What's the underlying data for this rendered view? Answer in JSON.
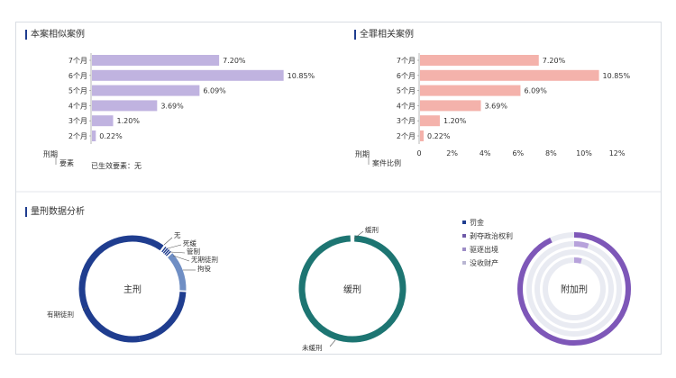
{
  "sections": {
    "similar_cases_title": "本案相似案例",
    "crime_cases_title": "全罪相关案例",
    "sentencing_title": "量刑数据分析"
  },
  "left_chart": {
    "axis_label_top": "刑期",
    "axis_label_bottom": "要素",
    "footer": "已生效要素：无"
  },
  "right_chart": {
    "axis_label_top": "刑期",
    "axis_label_bottom": "案件比例"
  },
  "colors": {
    "purple_bar": "#c0b3e0",
    "pink_bar": "#f4b2ab",
    "main_ring": "#1f3d8f",
    "main_ring_light": "#6f8ec4",
    "probation_ring": "#1d7572",
    "additional_ring": "#7e57b8",
    "ring_track": "#e9ebf2"
  },
  "chart_data": [
    {
      "type": "bar",
      "orientation": "horizontal",
      "title": "本案相似案例",
      "categories": [
        "7个月",
        "6个月",
        "5个月",
        "4个月",
        "3个月",
        "2个月"
      ],
      "values": [
        7.2,
        10.85,
        6.09,
        3.69,
        1.2,
        0.22
      ],
      "value_labels": [
        "7.20%",
        "10.85%",
        "6.09%",
        "3.69%",
        "1.20%",
        "0.22%"
      ]
    },
    {
      "type": "bar",
      "orientation": "horizontal",
      "title": "全罪相关案例",
      "categories": [
        "7个月",
        "6个月",
        "5个月",
        "4个月",
        "3个月",
        "2个月"
      ],
      "values": [
        7.2,
        10.85,
        6.09,
        3.69,
        1.2,
        0.22
      ],
      "value_labels": [
        "7.20%",
        "10.85%",
        "6.09%",
        "3.69%",
        "1.20%",
        "0.22%"
      ],
      "xlim": [
        0,
        12
      ],
      "x_ticks": [
        "0",
        "2%",
        "4%",
        "6%",
        "8%",
        "10%",
        "12%"
      ]
    },
    {
      "type": "pie",
      "center_label": "主刑",
      "slices": [
        {
          "name": "有期徒刑",
          "value": 85
        },
        {
          "name": "无",
          "value": 1
        },
        {
          "name": "死缓",
          "value": 1
        },
        {
          "name": "管制",
          "value": 1
        },
        {
          "name": "无期徒刑",
          "value": 1
        },
        {
          "name": "拘役",
          "value": 11
        }
      ]
    },
    {
      "type": "pie",
      "center_label": "缓刑",
      "slices": [
        {
          "name": "缓刑",
          "value": 1
        },
        {
          "name": "未缓刑",
          "value": 99
        }
      ]
    },
    {
      "type": "pie",
      "center_label": "附加刑",
      "legend": [
        "罚金",
        "剥夺政治权利",
        "驱逐出境",
        "没收财产"
      ],
      "rings": [
        {
          "name": "罚金",
          "value": 93
        },
        {
          "name": "剥夺政治权利",
          "value": 5
        },
        {
          "name": "驱逐出境",
          "value": 0
        },
        {
          "name": "没收财产",
          "value": 4
        }
      ]
    }
  ]
}
